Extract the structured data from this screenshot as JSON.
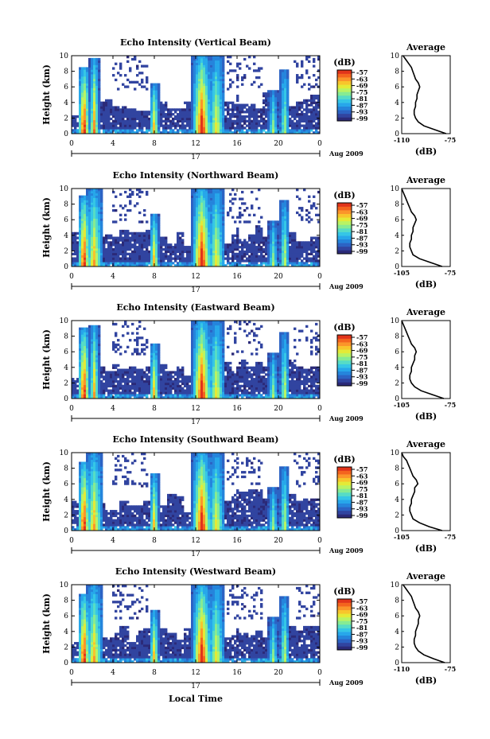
{
  "figure": {
    "xlabel": "Local Time",
    "ylabel": "Height (km)"
  },
  "colors": {
    "colorbar": [
      "#2b2a78",
      "#3144a0",
      "#2c63c4",
      "#2585dc",
      "#27a7ea",
      "#35c6e6",
      "#56dcc6",
      "#86eb93",
      "#b9f364",
      "#e4ea37",
      "#f8c52c",
      "#fb952a",
      "#f4641e",
      "#e1341a"
    ]
  },
  "chart_data": [
    {
      "type": "heatmap",
      "title": "Echo Intensity (Vertical Beam)",
      "xlabel": "",
      "ylabel": "Height (km)",
      "x_ticks": [
        "0",
        "4",
        "8",
        "12",
        "16",
        "20",
        "0"
      ],
      "y_ticks": [
        "0",
        "2",
        "4",
        "6",
        "8",
        "10"
      ],
      "xlim": [
        0,
        24
      ],
      "ylim": [
        0,
        10
      ],
      "day_label": "17",
      "date_label": "Aug 2009",
      "colorbar": {
        "title": "(dB)",
        "ticks": [
          "-57",
          "-63",
          "-69",
          "-75",
          "-81",
          "-87",
          "-93",
          "-99"
        ],
        "range": [
          -99,
          -57
        ]
      },
      "rain_events": [
        {
          "time": 1.2,
          "top": 8.6,
          "peak": 0.95
        },
        {
          "time": 2.2,
          "top": 9.8,
          "peak": 0.75
        },
        {
          "time": 8.0,
          "top": 6.4,
          "peak": 0.7
        },
        {
          "time": 12.6,
          "top": 10,
          "peak": 0.95
        },
        {
          "time": 14.0,
          "top": 10,
          "peak": 0.6
        },
        {
          "time": 19.5,
          "top": 5.6,
          "peak": 0.45
        },
        {
          "time": 20.6,
          "top": 8.2,
          "peak": 0.5
        }
      ],
      "average": {
        "title": "Average",
        "xlabel": "(dB)",
        "x_ticks": [
          "-110",
          "-75"
        ],
        "xlim": [
          -110,
          -75
        ],
        "height": [
          0,
          0.5,
          1,
          1.5,
          2,
          2.5,
          3,
          3.5,
          4,
          4.5,
          5,
          5.5,
          6,
          6.5,
          7,
          7.5,
          8,
          8.5,
          9,
          9.5,
          10
        ],
        "value": [
          -78,
          -86,
          -94,
          -98,
          -100,
          -101,
          -101,
          -100,
          -100,
          -99,
          -99,
          -98,
          -97,
          -98,
          -100,
          -101,
          -102,
          -103,
          -105,
          -107,
          -109
        ]
      }
    },
    {
      "type": "heatmap",
      "title": "Echo Intensity (Northward Beam)",
      "xlabel": "",
      "ylabel": "Height (km)",
      "x_ticks": [
        "0",
        "4",
        "8",
        "12",
        "16",
        "20",
        "0"
      ],
      "y_ticks": [
        "0",
        "2",
        "4",
        "6",
        "8",
        "10"
      ],
      "xlim": [
        0,
        24
      ],
      "ylim": [
        0,
        10
      ],
      "day_label": "17",
      "date_label": "Aug 2009",
      "colorbar": {
        "title": "(dB)",
        "ticks": [
          "-57",
          "-63",
          "-69",
          "-75",
          "-81",
          "-87",
          "-93",
          "-99"
        ],
        "range": [
          -99,
          -57
        ]
      },
      "rain_events": [
        {
          "time": 1.2,
          "top": 9,
          "peak": 0.95
        },
        {
          "time": 2.2,
          "top": 10,
          "peak": 0.7
        },
        {
          "time": 8.0,
          "top": 6.8,
          "peak": 0.7
        },
        {
          "time": 12.6,
          "top": 10,
          "peak": 0.95
        },
        {
          "time": 14.0,
          "top": 10,
          "peak": 0.6
        },
        {
          "time": 19.5,
          "top": 5.8,
          "peak": 0.45
        },
        {
          "time": 20.6,
          "top": 8.5,
          "peak": 0.55
        }
      ],
      "average": {
        "title": "Average",
        "xlabel": "(dB)",
        "x_ticks": [
          "-105",
          "-75"
        ],
        "xlim": [
          -105,
          -75
        ],
        "height": [
          0,
          0.5,
          1,
          1.5,
          2,
          2.5,
          3,
          3.5,
          4,
          4.5,
          5,
          5.5,
          6,
          6.5,
          7,
          7.5,
          8,
          8.5,
          9,
          9.5,
          10
        ],
        "value": [
          -80,
          -87,
          -94,
          -98,
          -99,
          -100,
          -100,
          -99,
          -99,
          -98,
          -98,
          -97,
          -96,
          -97,
          -99,
          -100,
          -101,
          -102,
          -103,
          -104,
          -105
        ]
      }
    },
    {
      "type": "heatmap",
      "title": "Echo Intensity (Eastward Beam)",
      "xlabel": "",
      "ylabel": "Height (km)",
      "x_ticks": [
        "0",
        "4",
        "8",
        "12",
        "16",
        "20",
        "0"
      ],
      "y_ticks": [
        "0",
        "2",
        "4",
        "6",
        "8",
        "10"
      ],
      "xlim": [
        0,
        24
      ],
      "ylim": [
        0,
        10
      ],
      "day_label": "17",
      "date_label": "Aug 2009",
      "colorbar": {
        "title": "(dB)",
        "ticks": [
          "-57",
          "-63",
          "-69",
          "-75",
          "-81",
          "-87",
          "-93",
          "-99"
        ],
        "range": [
          -99,
          -57
        ]
      },
      "rain_events": [
        {
          "time": 1.2,
          "top": 9,
          "peak": 0.95
        },
        {
          "time": 2.2,
          "top": 9.5,
          "peak": 0.7
        },
        {
          "time": 8.0,
          "top": 7.2,
          "peak": 0.7
        },
        {
          "time": 12.6,
          "top": 10,
          "peak": 0.95
        },
        {
          "time": 14.0,
          "top": 10,
          "peak": 0.6
        },
        {
          "time": 19.5,
          "top": 5.8,
          "peak": 0.45
        },
        {
          "time": 20.6,
          "top": 8.4,
          "peak": 0.55
        }
      ],
      "average": {
        "title": "Average",
        "xlabel": "(dB)",
        "x_ticks": [
          "-105",
          "-75"
        ],
        "xlim": [
          -105,
          -75
        ],
        "height": [
          0,
          0.5,
          1,
          1.5,
          2,
          2.5,
          3,
          3.5,
          4,
          4.5,
          5,
          5.5,
          6,
          6.5,
          7,
          7.5,
          8,
          8.5,
          9,
          9.5,
          10
        ],
        "value": [
          -79,
          -86,
          -93,
          -97,
          -99,
          -100,
          -100,
          -99,
          -99,
          -98,
          -97,
          -97,
          -96,
          -97,
          -99,
          -100,
          -101,
          -102,
          -103,
          -104,
          -105
        ]
      }
    },
    {
      "type": "heatmap",
      "title": "Echo Intensity (Southward Beam)",
      "xlabel": "",
      "ylabel": "Height (km)",
      "x_ticks": [
        "0",
        "4",
        "8",
        "12",
        "16",
        "20",
        "0"
      ],
      "y_ticks": [
        "0",
        "2",
        "4",
        "6",
        "8",
        "10"
      ],
      "xlim": [
        0,
        24
      ],
      "ylim": [
        0,
        10
      ],
      "day_label": "17",
      "date_label": "Aug 2009",
      "colorbar": {
        "title": "(dB)",
        "ticks": [
          "-57",
          "-63",
          "-69",
          "-75",
          "-81",
          "-87",
          "-93",
          "-99"
        ],
        "range": [
          -99,
          -57
        ]
      },
      "rain_events": [
        {
          "time": 1.2,
          "top": 8.8,
          "peak": 0.95
        },
        {
          "time": 2.2,
          "top": 10,
          "peak": 0.7
        },
        {
          "time": 8.0,
          "top": 7.5,
          "peak": 0.7
        },
        {
          "time": 12.6,
          "top": 10,
          "peak": 0.95
        },
        {
          "time": 14.0,
          "top": 10,
          "peak": 0.6
        },
        {
          "time": 19.5,
          "top": 5.6,
          "peak": 0.45
        },
        {
          "time": 20.6,
          "top": 8.3,
          "peak": 0.55
        }
      ],
      "average": {
        "title": "Average",
        "xlabel": "(dB)",
        "x_ticks": [
          "-105",
          "-75"
        ],
        "xlim": [
          -105,
          -75
        ],
        "height": [
          0,
          0.5,
          1,
          1.5,
          2,
          2.5,
          3,
          3.5,
          4,
          4.5,
          5,
          5.5,
          6,
          6.5,
          7,
          7.5,
          8,
          8.5,
          9,
          9.5,
          10
        ],
        "value": [
          -80,
          -88,
          -94,
          -98,
          -99,
          -100,
          -100,
          -99,
          -99,
          -98,
          -97,
          -97,
          -95,
          -96,
          -98,
          -99,
          -100,
          -101,
          -102,
          -104,
          -105
        ]
      }
    },
    {
      "type": "heatmap",
      "title": "Echo Intensity (Westward Beam)",
      "xlabel": "Local Time",
      "ylabel": "Height (km)",
      "x_ticks": [
        "0",
        "4",
        "8",
        "12",
        "16",
        "20",
        "0"
      ],
      "y_ticks": [
        "0",
        "2",
        "4",
        "6",
        "8",
        "10"
      ],
      "xlim": [
        0,
        24
      ],
      "ylim": [
        0,
        10
      ],
      "day_label": "17",
      "date_label": "Aug 2009",
      "colorbar": {
        "title": "(dB)",
        "ticks": [
          "-57",
          "-63",
          "-69",
          "-75",
          "-81",
          "-87",
          "-93",
          "-99"
        ],
        "range": [
          -99,
          -57
        ]
      },
      "rain_events": [
        {
          "time": 1.2,
          "top": 8.8,
          "peak": 0.95
        },
        {
          "time": 2.2,
          "top": 10,
          "peak": 0.7
        },
        {
          "time": 8.0,
          "top": 6.8,
          "peak": 0.7
        },
        {
          "time": 12.6,
          "top": 10,
          "peak": 0.95
        },
        {
          "time": 14.0,
          "top": 10,
          "peak": 0.6
        },
        {
          "time": 19.5,
          "top": 5.8,
          "peak": 0.45
        },
        {
          "time": 20.6,
          "top": 8.5,
          "peak": 0.55
        }
      ],
      "average": {
        "title": "Average",
        "xlabel": "(dB)",
        "x_ticks": [
          "-110",
          "-75"
        ],
        "xlim": [
          -110,
          -75
        ],
        "height": [
          0,
          0.5,
          1,
          1.5,
          2,
          2.5,
          3,
          3.5,
          4,
          4.5,
          5,
          5.5,
          6,
          6.5,
          7,
          7.5,
          8,
          8.5,
          9,
          9.5,
          10
        ],
        "value": [
          -79,
          -87,
          -94,
          -98,
          -100,
          -101,
          -101,
          -100,
          -100,
          -99,
          -98,
          -98,
          -97,
          -98,
          -100,
          -101,
          -102,
          -103,
          -105,
          -107,
          -109
        ]
      }
    }
  ]
}
